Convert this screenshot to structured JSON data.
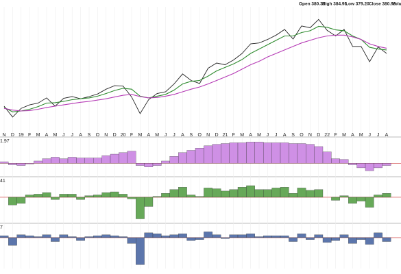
{
  "chart_data": [
    {
      "type": "line",
      "header": [
        "Open 380.36",
        "High 384.95",
        "Low 379.20",
        "Close 380.99",
        "Volu"
      ],
      "categories": [
        "N",
        "D",
        "19",
        "F",
        "M",
        "A",
        "M",
        "J",
        "J",
        "A",
        "S",
        "O",
        "N",
        "D",
        "20",
        "F",
        "M",
        "A",
        "M",
        "J",
        "J",
        "A",
        "S",
        "O",
        "N",
        "D",
        "21",
        "F",
        "M",
        "A",
        "M",
        "J",
        "J",
        "A",
        "S",
        "O",
        "N",
        "D",
        "22",
        "F",
        "M",
        "A",
        "M",
        "J",
        "J",
        "A"
      ],
      "series": [
        {
          "color": "#222222",
          "values": [
            275,
            250,
            270,
            278,
            282,
            294,
            275,
            293,
            297,
            292,
            297,
            303,
            314,
            322,
            321,
            296,
            258,
            290,
            304,
            308,
            326,
            349,
            334,
            327,
            362,
            374,
            370,
            381,
            396,
            418,
            420,
            428,
            438,
            451,
            429,
            459,
            455,
            474,
            449,
            436,
            451,
            412,
            412,
            377,
            411,
            396
          ]
        },
        {
          "color": "#2e8b2e",
          "values": [
            272,
            262,
            264,
            268,
            274,
            282,
            283,
            286,
            290,
            292,
            294,
            298,
            304,
            311,
            316,
            314,
            298,
            294,
            298,
            302,
            312,
            326,
            332,
            334,
            344,
            356,
            364,
            372,
            382,
            396,
            406,
            416,
            426,
            436,
            436,
            444,
            448,
            458,
            456,
            450,
            448,
            436,
            428,
            410,
            406,
            404
          ]
        },
        {
          "color": "#b53ab5",
          "values": [
            270,
            266,
            264,
            265,
            268,
            272,
            275,
            278,
            281,
            284,
            286,
            289,
            292,
            296,
            300,
            302,
            297,
            294,
            295,
            298,
            302,
            308,
            314,
            319,
            326,
            334,
            342,
            350,
            360,
            370,
            378,
            388,
            396,
            404,
            412,
            420,
            426,
            432,
            436,
            438,
            438,
            434,
            428,
            418,
            412,
            408
          ]
        }
      ],
      "ylim": [
        220,
        495
      ],
      "grid": true
    },
    {
      "type": "bar",
      "label": "1.97",
      "color": "#c77de0",
      "ylim": [
        -1.6,
        3.1
      ],
      "values": [
        0.2,
        -0.2,
        -0.3,
        -0.1,
        0.3,
        0.6,
        0.8,
        0.6,
        0.8,
        0.7,
        0.7,
        0.7,
        1.0,
        1.2,
        1.4,
        1.6,
        -0.3,
        -0.5,
        -0.3,
        0.3,
        0.9,
        1.4,
        1.7,
        2.0,
        2.3,
        2.5,
        2.6,
        2.7,
        2.7,
        2.8,
        2.8,
        2.7,
        2.7,
        2.7,
        2.6,
        2.6,
        2.5,
        2.2,
        1.5,
        0.6,
        0.5,
        -0.2,
        -0.6,
        -1.0,
        -0.6,
        -0.3
      ]
    },
    {
      "type": "bar",
      "label": "41",
      "color": "#4c9a3c",
      "ylim": [
        -3.2,
        2.3
      ],
      "values": [
        0,
        -1,
        -0.8,
        0.3,
        0.4,
        0.6,
        -0.3,
        0.4,
        0.4,
        -0.3,
        0.2,
        0.3,
        0.6,
        0.7,
        0.4,
        -0.2,
        -2.8,
        -1.2,
        0.1,
        0.5,
        1.0,
        1.3,
        0.3,
        0.1,
        1.2,
        1.1,
        0.8,
        1.0,
        1.3,
        1.5,
        1.0,
        1.0,
        1.2,
        1.3,
        0.5,
        1.2,
        0.9,
        1.0,
        0.0,
        -0.4,
        0.2,
        -0.8,
        -0.5,
        -1.3,
        0.3,
        0.5
      ]
    },
    {
      "type": "bar",
      "label": "7",
      "color": "#3f5e9e",
      "ylim": [
        -3.2,
        1.2
      ],
      "values": [
        0.2,
        -0.8,
        0.3,
        0.2,
        0.1,
        0.3,
        -0.4,
        0.3,
        0.1,
        -0.3,
        0.1,
        0.2,
        0.3,
        0.2,
        0.1,
        -0.6,
        -2.8,
        0.5,
        0.4,
        0.2,
        0.3,
        0.4,
        -0.3,
        -0.2,
        0.6,
        0.3,
        -0.1,
        0.3,
        0.3,
        0.4,
        0.1,
        0.2,
        0.2,
        0.2,
        -0.4,
        0.4,
        -0.2,
        0.3,
        -0.5,
        -0.3,
        0.3,
        -0.6,
        -0.2,
        -0.7,
        0.5,
        -0.4
      ]
    }
  ]
}
